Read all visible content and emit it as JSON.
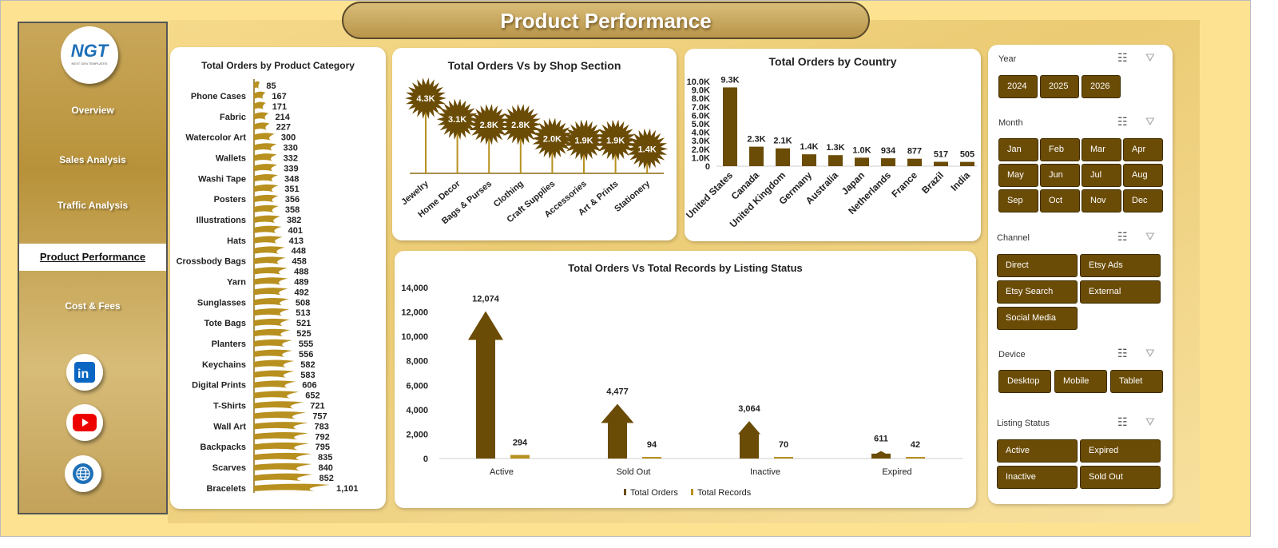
{
  "title": "Product Performance",
  "colors": {
    "dark_brown": "#6b4c06",
    "gold": "#b8901f",
    "background": "#fde391"
  },
  "sidebar": {
    "logo_text": "NGT",
    "logo_subtext": "NEXT GEN TEMPLATES",
    "items": [
      {
        "label": "Overview"
      },
      {
        "label": "Sales Analysis"
      },
      {
        "label": "Traffic Analysis"
      },
      {
        "label": "Product Performance",
        "active": true
      },
      {
        "label": "Cost & Fees"
      }
    ],
    "social": [
      "linkedin-icon",
      "youtube-icon",
      "globe-icon"
    ]
  },
  "chart_data": [
    {
      "id": "category",
      "type": "bar",
      "orientation": "horizontal",
      "title": "Total Orders by Product Category",
      "categories": [
        "",
        "Phone Cases",
        "",
        "Fabric",
        "",
        "Watercolor Art",
        "",
        "Wallets",
        "",
        "Washi Tape",
        "",
        "Posters",
        "",
        "Illustrations",
        "",
        "Hats",
        "",
        "Crossbody Bags",
        "",
        "Yarn",
        "",
        "Sunglasses",
        "",
        "Tote Bags",
        "",
        "Planters",
        "",
        "Keychains",
        "",
        "Digital Prints",
        "",
        "T-Shirts",
        "",
        "Wall Art",
        "",
        "Backpacks",
        "",
        "Scarves",
        "",
        "Bracelets"
      ],
      "values": [
        85,
        167,
        171,
        214,
        227,
        300,
        330,
        332,
        339,
        348,
        351,
        356,
        358,
        382,
        401,
        413,
        448,
        458,
        488,
        489,
        492,
        508,
        513,
        521,
        525,
        555,
        556,
        582,
        583,
        606,
        652,
        721,
        757,
        783,
        792,
        795,
        835,
        840,
        852,
        1101
      ],
      "data_labels": [
        "85",
        "167",
        "171",
        "214",
        "227",
        "300",
        "330",
        "332",
        "339",
        "348",
        "351",
        "356",
        "358",
        "382",
        "401",
        "413",
        "448",
        "458",
        "488",
        "489",
        "492",
        "508",
        "513",
        "521",
        "525",
        "555",
        "556",
        "582",
        "583",
        "606",
        "652",
        "721",
        "757",
        "783",
        "792",
        "795",
        "835",
        "840",
        "852",
        "1,101"
      ]
    },
    {
      "id": "shop",
      "type": "bar",
      "title": "Total Orders Vs  by Shop Section",
      "categories": [
        "Jewelry",
        "Home Decor",
        "Bags & Purses",
        "Clothing",
        "Craft Supplies",
        "Accessories",
        "Art & Prints",
        "Stationery"
      ],
      "values": [
        4300,
        3100,
        2800,
        2800,
        2000,
        1900,
        1900,
        1400
      ],
      "data_labels": [
        "4.3K",
        "3.1K",
        "2.8K",
        "2.8K",
        "2.0K",
        "1.9K",
        "1.9K",
        "1.4K"
      ]
    },
    {
      "id": "country",
      "type": "bar",
      "title": "Total Orders by Country",
      "categories": [
        "United States",
        "Canada",
        "United Kingdom",
        "Germany",
        "Australia",
        "Japan",
        "Netherlands",
        "France",
        "Brazil",
        "India"
      ],
      "values": [
        9300,
        2300,
        2100,
        1400,
        1300,
        1000,
        934,
        877,
        517,
        505
      ],
      "data_labels": [
        "9.3K",
        "2.3K",
        "2.1K",
        "1.4K",
        "1.3K",
        "1.0K",
        "934",
        "877",
        "517",
        "505"
      ],
      "ylim": [
        0,
        10000
      ],
      "yticks": [
        "0",
        "1.0K",
        "2.0K",
        "3.0K",
        "4.0K",
        "5.0K",
        "6.0K",
        "7.0K",
        "8.0K",
        "9.0K",
        "10.0K"
      ]
    },
    {
      "id": "listing",
      "type": "bar",
      "title": "Total Orders Vs Total Records by Listing Status",
      "categories": [
        "Active",
        "Sold Out",
        "Inactive",
        "Expired"
      ],
      "series": [
        {
          "name": "Total Orders",
          "values": [
            12074,
            4477,
            3064,
            611
          ],
          "data_labels": [
            "12,074",
            "4,477",
            "3,064",
            "611"
          ]
        },
        {
          "name": "Total Records",
          "values": [
            294,
            94,
            70,
            42
          ],
          "data_labels": [
            "294",
            "94",
            "70",
            "42"
          ]
        }
      ],
      "ylim": [
        0,
        14000
      ],
      "yticks": [
        "0",
        "2,000",
        "4,000",
        "6,000",
        "8,000",
        "10,000",
        "12,000",
        "14,000"
      ],
      "legend": "bottom"
    }
  ],
  "slicers": [
    {
      "label": "Year",
      "options": [
        "2024",
        "2025",
        "2026"
      ]
    },
    {
      "label": "Month",
      "options": [
        "Jan",
        "Feb",
        "Mar",
        "Apr",
        "May",
        "Jun",
        "Jul",
        "Aug",
        "Sep",
        "Oct",
        "Nov",
        "Dec"
      ]
    },
    {
      "label": "Channel",
      "options": [
        "Direct",
        "Etsy Ads",
        "Etsy Search",
        "External",
        "Social Media"
      ]
    },
    {
      "label": "Device",
      "options": [
        "Desktop",
        "Mobile",
        "Tablet"
      ]
    },
    {
      "label": "Listing Status",
      "options": [
        "Active",
        "Expired",
        "Inactive",
        "Sold Out"
      ]
    }
  ]
}
